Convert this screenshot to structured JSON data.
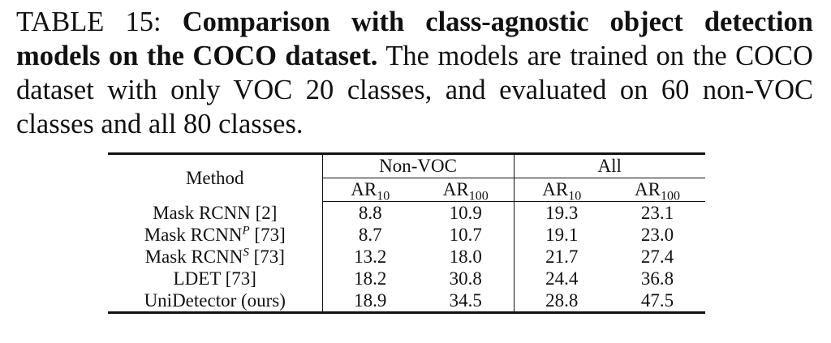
{
  "caption": {
    "label": "TABLE 15:",
    "bold": "Comparison with class-agnostic object detection models on the COCO dataset.",
    "text": "The models are trained on the COCO dataset with only VOC 20 classes, and evaluated on 60 non-VOC classes and all 80 classes."
  },
  "table": {
    "method_header": "Method",
    "groups": [
      "Non-VOC",
      "All"
    ],
    "columns": [
      {
        "base": "AR",
        "sub": "10"
      },
      {
        "base": "AR",
        "sub": "100"
      },
      {
        "base": "AR",
        "sub": "10"
      },
      {
        "base": "AR",
        "sub": "100"
      }
    ],
    "rows": [
      {
        "method": "Mask RCNN [2]",
        "values": [
          "8.8",
          "10.9",
          "19.3",
          "23.1"
        ]
      },
      {
        "method": "Mask RCNN",
        "sup": "P",
        "ref": "[73]",
        "values": [
          "8.7",
          "10.7",
          "19.1",
          "23.0"
        ]
      },
      {
        "method": "Mask RCNN",
        "sup": "S",
        "ref": "[73]",
        "values": [
          "13.2",
          "18.0",
          "21.7",
          "27.4"
        ]
      },
      {
        "method": "LDET [73]",
        "values": [
          "18.2",
          "30.8",
          "24.4",
          "36.8"
        ]
      },
      {
        "method": "UniDetector (ours)",
        "values": [
          "18.9",
          "34.5",
          "28.8",
          "47.5"
        ]
      }
    ]
  }
}
